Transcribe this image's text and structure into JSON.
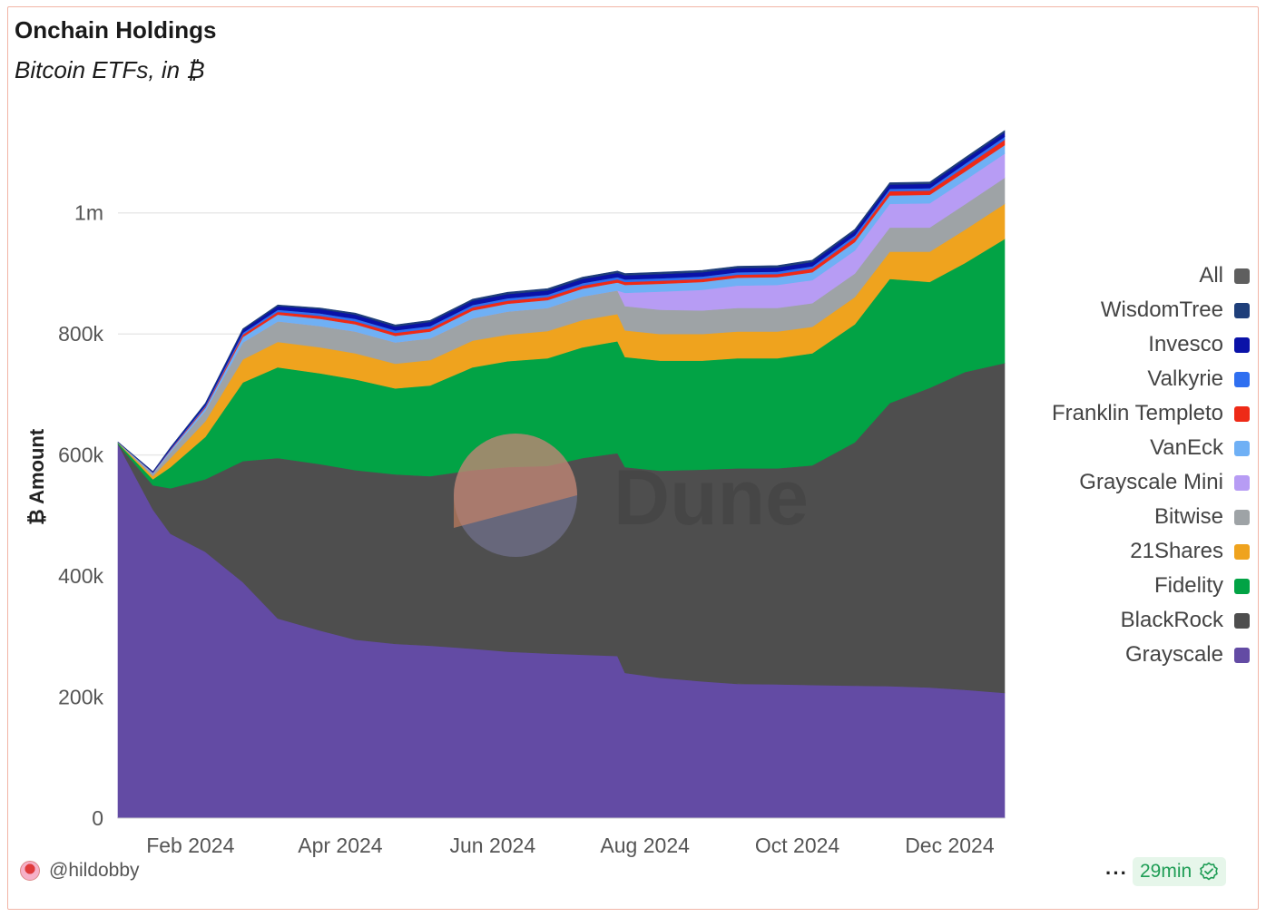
{
  "header": {
    "title": "Onchain Holdings",
    "subtitle": "Bitcoin ETFs, in ₿"
  },
  "footer": {
    "username": "@hildobby",
    "more_label": "···",
    "refresh_label": "29min"
  },
  "watermark": "Dune",
  "chart_data": {
    "type": "area",
    "stacked": true,
    "ylabel": "₿ Amount",
    "xlabel": "",
    "ylim": [
      0,
      1130000
    ],
    "y_ticks": [
      0,
      200000,
      400000,
      600000,
      800000,
      1000000
    ],
    "y_tick_labels": [
      "0",
      "200k",
      "400k",
      "600k",
      "800k",
      "1m"
    ],
    "x_ticks": [
      "2024-02-01",
      "2024-04-01",
      "2024-06-01",
      "2024-08-01",
      "2024-10-01",
      "2024-12-01"
    ],
    "x_tick_labels": [
      "Feb 2024",
      "Apr 2024",
      "Jun 2024",
      "Aug 2024",
      "Oct 2024",
      "Dec 2024"
    ],
    "x_range": [
      "2024-01-11",
      "2024-12-31"
    ],
    "grid": true,
    "legend_position": "right",
    "legend": [
      {
        "name": "All",
        "color": "#5f5f5f"
      },
      {
        "name": "WisdomTree",
        "color": "#1f3f7a"
      },
      {
        "name": "Invesco",
        "color": "#0a12a8"
      },
      {
        "name": "Valkyrie",
        "color": "#2f6ff0"
      },
      {
        "name": "Franklin Templeto",
        "color": "#ee2a17"
      },
      {
        "name": "VanEck",
        "color": "#6fb0f5"
      },
      {
        "name": "Grayscale Mini",
        "color": "#b79cf4"
      },
      {
        "name": "Bitwise",
        "color": "#9ea3a6"
      },
      {
        "name": "21Shares",
        "color": "#efa31e"
      },
      {
        "name": "Fidelity",
        "color": "#02a345"
      },
      {
        "name": "BlackRock",
        "color": "#4e4e4e"
      },
      {
        "name": "Grayscale",
        "color": "#634ba4"
      }
    ],
    "dates": [
      "2024-01-11",
      "2024-01-25",
      "2024-02-01",
      "2024-02-15",
      "2024-03-01",
      "2024-03-15",
      "2024-04-01",
      "2024-04-15",
      "2024-05-01",
      "2024-05-15",
      "2024-06-01",
      "2024-06-15",
      "2024-07-01",
      "2024-07-15",
      "2024-07-29",
      "2024-08-01",
      "2024-08-15",
      "2024-09-01",
      "2024-09-15",
      "2024-10-01",
      "2024-10-15",
      "2024-11-01",
      "2024-11-15",
      "2024-12-01",
      "2024-12-15",
      "2024-12-31"
    ],
    "series": [
      {
        "name": "Grayscale",
        "color": "#634ba4",
        "values": [
          618000,
          510000,
          470000,
          440000,
          390000,
          330000,
          310000,
          295000,
          288000,
          285000,
          280000,
          275000,
          272000,
          270000,
          268000,
          240000,
          232000,
          226000,
          222000,
          221000,
          220000,
          219000,
          218000,
          216000,
          212000,
          207000
        ]
      },
      {
        "name": "BlackRock",
        "color": "#4e4e4e",
        "values": [
          0,
          40000,
          75000,
          120000,
          200000,
          265000,
          275000,
          280000,
          280000,
          280000,
          295000,
          305000,
          310000,
          325000,
          335000,
          340000,
          342000,
          350000,
          356000,
          357000,
          363000,
          402000,
          468000,
          495000,
          525000,
          545000
        ]
      },
      {
        "name": "Fidelity",
        "color": "#02a345",
        "values": [
          2000,
          10000,
          35000,
          70000,
          130000,
          150000,
          150000,
          150000,
          142000,
          150000,
          170000,
          175000,
          178000,
          183000,
          185000,
          182000,
          182000,
          180000,
          182000,
          182000,
          185000,
          195000,
          205000,
          175000,
          180000,
          205000
        ]
      },
      {
        "name": "21Shares",
        "color": "#efa31e",
        "values": [
          500,
          5000,
          15000,
          26000,
          38000,
          42000,
          43000,
          43000,
          41000,
          42000,
          44000,
          44000,
          45000,
          45000,
          45000,
          44000,
          44000,
          44000,
          44000,
          44000,
          44000,
          45000,
          45000,
          50000,
          55000,
          58000
        ]
      },
      {
        "name": "Bitwise",
        "color": "#9ea3a6",
        "values": [
          500,
          4000,
          10000,
          17000,
          28000,
          34000,
          35000,
          36000,
          35000,
          36000,
          37000,
          38000,
          38000,
          39000,
          39000,
          40000,
          40000,
          39000,
          39000,
          39000,
          39000,
          39000,
          40000,
          40000,
          42000,
          43000
        ]
      },
      {
        "name": "Grayscale Mini",
        "color": "#b79cf4",
        "values": [
          0,
          0,
          0,
          0,
          0,
          0,
          0,
          0,
          0,
          0,
          0,
          0,
          0,
          0,
          0,
          22000,
          30000,
          34000,
          37000,
          38000,
          38000,
          38000,
          39000,
          40000,
          40000,
          40000
        ]
      },
      {
        "name": "VanEck",
        "color": "#6fb0f5",
        "values": [
          300,
          1500,
          3000,
          5000,
          9000,
          11000,
          12000,
          12000,
          11000,
          11000,
          13000,
          13000,
          13000,
          13000,
          13000,
          13000,
          13000,
          13000,
          13000,
          13000,
          13000,
          14000,
          14000,
          14000,
          14000,
          14000
        ]
      },
      {
        "name": "Franklin Templeto",
        "color": "#ee2a17",
        "values": [
          0,
          500,
          1000,
          2000,
          4000,
          4500,
          5000,
          5000,
          5000,
          5000,
          5000,
          5000,
          5000,
          5000,
          5000,
          5000,
          5000,
          5000,
          5000,
          5000,
          6000,
          7000,
          7000,
          7000,
          8000,
          9000
        ]
      },
      {
        "name": "Valkyrie",
        "color": "#2f6ff0",
        "values": [
          0,
          500,
          1000,
          2000,
          3000,
          3500,
          4000,
          4000,
          4000,
          4000,
          4000,
          4000,
          4000,
          4000,
          4000,
          4000,
          4000,
          4000,
          4000,
          4000,
          4000,
          4000,
          4000,
          4000,
          5000,
          5000
        ]
      },
      {
        "name": "Invesco",
        "color": "#0a12a8",
        "values": [
          0,
          1000,
          2000,
          3000,
          5000,
          6000,
          7000,
          7000,
          6500,
          7000,
          7000,
          7000,
          7000,
          7000,
          7000,
          7000,
          7000,
          7000,
          7000,
          7000,
          7000,
          7000,
          7000,
          7000,
          7000,
          7000
        ]
      },
      {
        "name": "WisdomTree",
        "color": "#1f3f7a",
        "values": [
          0,
          200,
          500,
          800,
          1500,
          2000,
          2000,
          2500,
          2500,
          2500,
          2500,
          3000,
          3000,
          3000,
          3000,
          3000,
          3000,
          3000,
          3000,
          3000,
          3000,
          3000,
          3000,
          3000,
          3000,
          3000
        ]
      }
    ]
  }
}
